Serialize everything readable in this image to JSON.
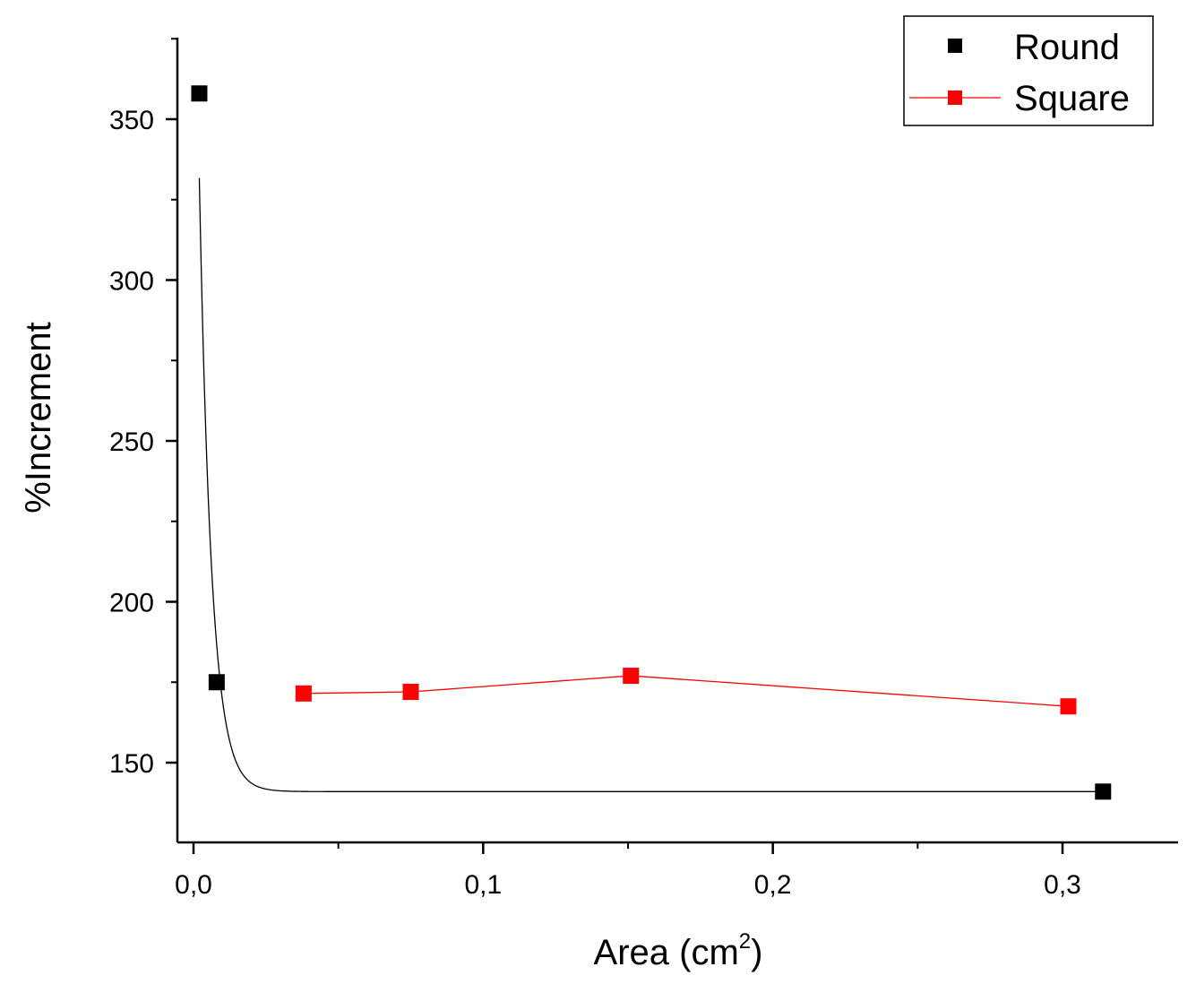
{
  "chart_data": {
    "type": "scatter",
    "xlabel": "Area (cm",
    "xlabel_superscript": "2",
    "xlabel_suffix": ")",
    "ylabel": "%Increment",
    "xlim": [
      -0.008,
      0.349
    ],
    "ylim": [
      125,
      375
    ],
    "x_ticks": [
      {
        "value": 0.0,
        "label": "0,0"
      },
      {
        "value": 0.1,
        "label": "0,1"
      },
      {
        "value": 0.2,
        "label": "0,2"
      },
      {
        "value": 0.3,
        "label": "0,3"
      }
    ],
    "x_minor_ticks": [
      0.05,
      0.15,
      0.25,
      0.35
    ],
    "y_ticks": [
      {
        "value": 150,
        "label": "150"
      },
      {
        "value": 200,
        "label": "200"
      },
      {
        "value": 250,
        "label": "250"
      },
      {
        "value": 300,
        "label": "300"
      },
      {
        "value": 350,
        "label": "350"
      }
    ],
    "y_minor_ticks": [
      175,
      225,
      275,
      325,
      375
    ],
    "grid": false,
    "legend_position": "top-right",
    "series": [
      {
        "name": "Round",
        "color": "#000000",
        "marker": "square",
        "connected": false,
        "points": [
          {
            "x": 0.002,
            "y": 358
          },
          {
            "x": 0.008,
            "y": 175
          },
          {
            "x": 0.314,
            "y": 141
          }
        ],
        "fit": {
          "type": "exponential-decay",
          "y0": 141,
          "A": 307,
          "t": 0.0042
        }
      },
      {
        "name": "Square",
        "color": "#ff0000",
        "marker": "square",
        "connected": true,
        "points": [
          {
            "x": 0.038,
            "y": 171.5
          },
          {
            "x": 0.075,
            "y": 172
          },
          {
            "x": 0.151,
            "y": 177
          },
          {
            "x": 0.302,
            "y": 167.5
          }
        ]
      }
    ]
  }
}
